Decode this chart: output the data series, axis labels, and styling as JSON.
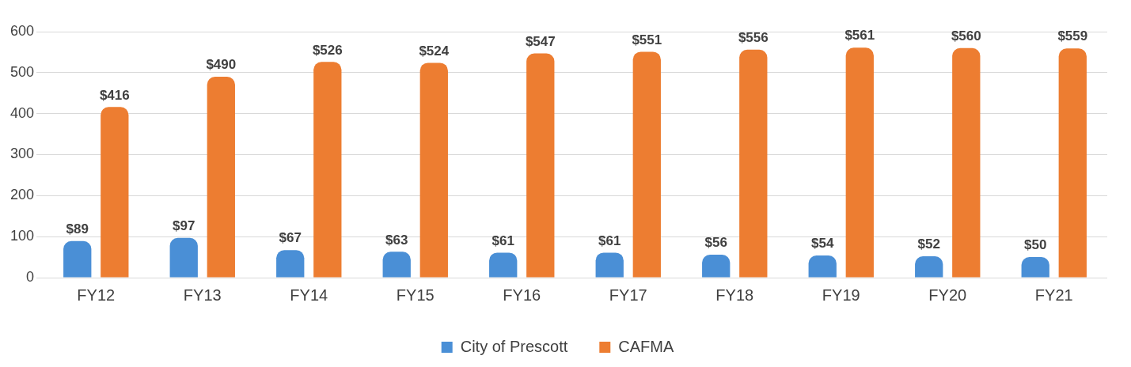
{
  "chart_data": {
    "type": "bar",
    "categories": [
      "FY12",
      "FY13",
      "FY14",
      "FY15",
      "FY16",
      "FY17",
      "FY18",
      "FY19",
      "FY20",
      "FY21"
    ],
    "series": [
      {
        "name": "City of Prescott",
        "color": "#4a8fd6",
        "values": [
          89,
          97,
          67,
          63,
          61,
          61,
          56,
          54,
          52,
          50
        ],
        "value_labels": [
          "$89",
          "$97",
          "$67",
          "$63",
          "$61",
          "$61",
          "$56",
          "$54",
          "$52",
          "$50"
        ]
      },
      {
        "name": "CAFMA",
        "color": "#ed7d31",
        "values": [
          416,
          490,
          526,
          524,
          547,
          551,
          556,
          561,
          560,
          559
        ],
        "value_labels": [
          "$416",
          "$490",
          "$526",
          "$524",
          "$547",
          "$551",
          "$556",
          "$561",
          "$560",
          "$559"
        ]
      }
    ],
    "ylim": [
      0,
      600
    ],
    "yticks": [
      0,
      100,
      200,
      300,
      400,
      500,
      600
    ],
    "grid": "y",
    "legend": "bottom"
  }
}
